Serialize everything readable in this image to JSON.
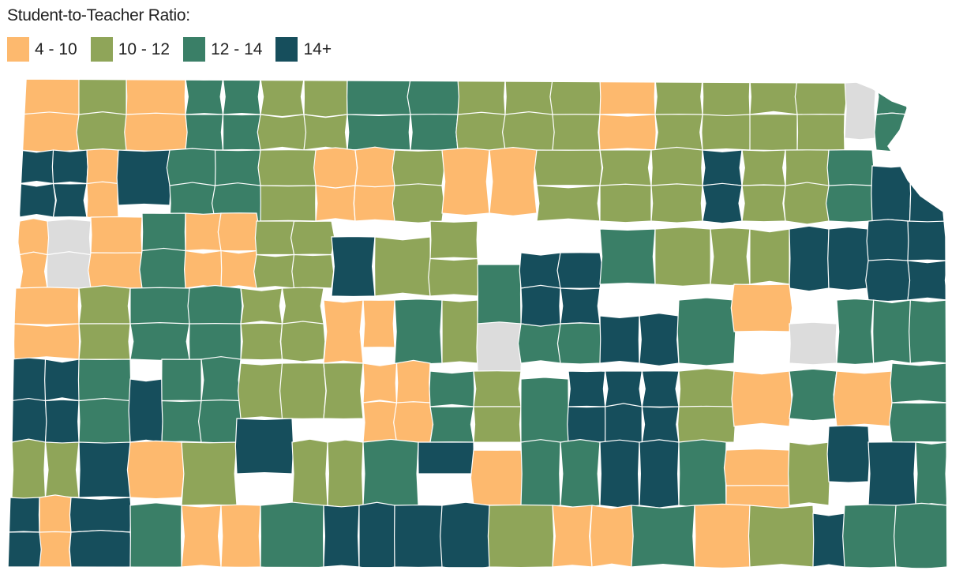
{
  "legend": {
    "title": "Student-to-Teacher Ratio:",
    "items": [
      {
        "label": "4 - 10",
        "color": "#fdb96e"
      },
      {
        "label": "10 - 12",
        "color": "#8fa559"
      },
      {
        "label": "12 - 14",
        "color": "#3a7f67"
      },
      {
        "label": "14+",
        "color": "#164e5c"
      }
    ],
    "no_data_color": "#dcdcdc"
  },
  "map": {
    "region": "Kansas school districts",
    "border_color": "#ffffff"
  }
}
